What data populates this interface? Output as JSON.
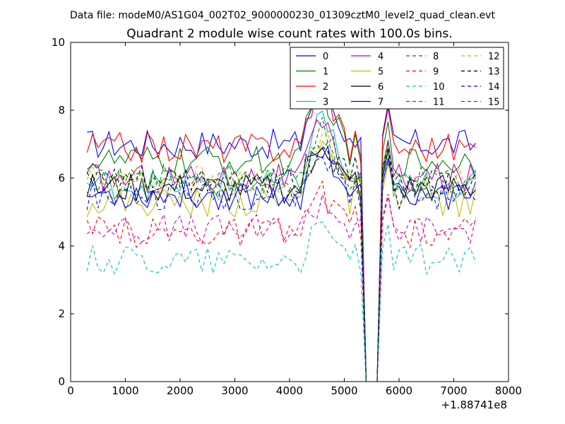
{
  "header": "Data file: modeM0/AS1G04_002T02_9000000230_01309cztM0_level2_quad_clean.evt",
  "chart_data": {
    "type": "line",
    "title": "Quadrant 2 module wise count rates with 100.0s bins.",
    "xlabel": "",
    "ylabel": "",
    "x_offset_label": "+1.88741e8",
    "xlim": [
      0,
      8000
    ],
    "ylim": [
      0,
      10
    ],
    "xticks": [
      0,
      1000,
      2000,
      3000,
      4000,
      5000,
      6000,
      7000,
      8000
    ],
    "yticks": [
      0,
      2,
      4,
      6,
      8,
      10
    ],
    "grid": false,
    "legend_position": "top-right",
    "legend_columns": 4,
    "x_segments": [
      {
        "start": 300,
        "end": 5400,
        "step": 100
      },
      {
        "start": 5600,
        "end": 7400,
        "step": 100
      }
    ],
    "gap": {
      "start": 5400,
      "end": 5600,
      "value": 0
    },
    "series": [
      {
        "name": "0",
        "color": "#0000ff",
        "dash": "solid",
        "level": 7.0,
        "peak": 8.8
      },
      {
        "name": "1",
        "color": "#008000",
        "dash": "solid",
        "level": 6.5,
        "peak": 8.7
      },
      {
        "name": "2",
        "color": "#ff0000",
        "dash": "solid",
        "level": 6.9,
        "peak": 8.9
      },
      {
        "name": "3",
        "color": "#00bfbf",
        "dash": "solid",
        "level": 5.8,
        "peak": 8.0
      },
      {
        "name": "4",
        "color": "#bf00bf",
        "dash": "solid",
        "level": 6.0,
        "peak": 7.6
      },
      {
        "name": "5",
        "color": "#bfbf00",
        "dash": "solid",
        "level": 5.3,
        "peak": 7.3
      },
      {
        "name": "6",
        "color": "#000000",
        "dash": "solid",
        "level": 5.7,
        "peak": 7.2
      },
      {
        "name": "7",
        "color": "#0000ff",
        "dash": "solid",
        "level": 5.5,
        "peak": 7.0
      },
      {
        "name": "8",
        "color": "#008000",
        "dash": "dashed",
        "level": 6.0,
        "peak": 7.4
      },
      {
        "name": "9",
        "color": "#ff0000",
        "dash": "dashed",
        "level": 4.4,
        "peak": 5.6
      },
      {
        "name": "10",
        "color": "#00bfbf",
        "dash": "dashed",
        "level": 3.6,
        "peak": 4.5
      },
      {
        "name": "11",
        "color": "#bf00bf",
        "dash": "dashed",
        "level": 4.5,
        "peak": 5.4
      },
      {
        "name": "12",
        "color": "#bfbf00",
        "dash": "dashed",
        "level": 5.9,
        "peak": 7.3
      },
      {
        "name": "13",
        "color": "#000000",
        "dash": "dashed",
        "level": 5.9,
        "peak": 7.0
      },
      {
        "name": "14",
        "color": "#0000ff",
        "dash": "dashed",
        "level": 5.5,
        "peak": 6.8
      },
      {
        "name": "15",
        "color": "#008000",
        "dash": "dashed",
        "level": 5.8,
        "peak": 7.1
      }
    ]
  }
}
